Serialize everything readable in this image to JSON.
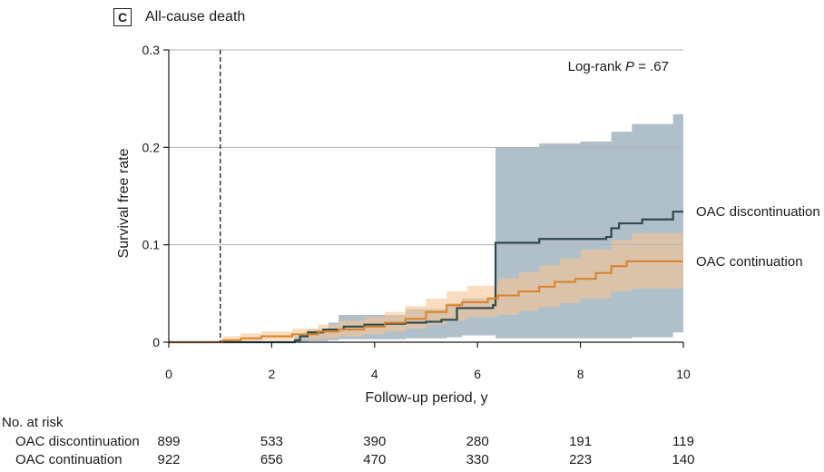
{
  "panel": {
    "label": "C",
    "title": "All-cause death"
  },
  "chart_data": {
    "type": "line",
    "title": "All-cause death",
    "xlabel": "Follow-up period, y",
    "ylabel": "Survival free rate",
    "xlim": [
      0,
      10
    ],
    "ylim": [
      0,
      0.3
    ],
    "xticks": [
      0,
      2,
      4,
      6,
      8,
      10
    ],
    "yticks": [
      0,
      0.1,
      0.2,
      0.3
    ],
    "ytick_labels": [
      "0",
      "0.1",
      "0.2",
      "0.3"
    ],
    "grid": "horizontal",
    "reference_line_x": 1,
    "annotation": {
      "prefix": "Log-rank ",
      "italic": "P",
      "suffix": " = .67"
    },
    "series": [
      {
        "name": "OAC discontinuation",
        "color": "#2e4a52",
        "band_color": "#a7b9c4",
        "steps": [
          [
            0,
            0
          ],
          [
            1,
            0
          ],
          [
            2.45,
            0.002
          ],
          [
            2.55,
            0.006
          ],
          [
            2.7,
            0.01
          ],
          [
            3.0,
            0.013
          ],
          [
            3.4,
            0.016
          ],
          [
            3.8,
            0.018
          ],
          [
            4.2,
            0.019
          ],
          [
            4.6,
            0.02
          ],
          [
            5.0,
            0.021
          ],
          [
            5.3,
            0.023
          ],
          [
            5.6,
            0.035
          ],
          [
            6.3,
            0.038
          ],
          [
            6.35,
            0.102
          ],
          [
            7.2,
            0.106
          ],
          [
            8.5,
            0.108
          ],
          [
            8.6,
            0.117
          ],
          [
            8.75,
            0.122
          ],
          [
            9.2,
            0.126
          ],
          [
            9.8,
            0.134
          ],
          [
            10.0,
            0.134
          ]
        ],
        "ci": [
          [
            0,
            0,
            0
          ],
          [
            1,
            0,
            0
          ],
          [
            2.45,
            0,
            0.006
          ],
          [
            2.7,
            0.001,
            0.013
          ],
          [
            3.1,
            0.002,
            0.02
          ],
          [
            3.3,
            0.003,
            0.028
          ],
          [
            4.6,
            0.004,
            0.034
          ],
          [
            5.4,
            0.005,
            0.04
          ],
          [
            5.7,
            0.007,
            0.045
          ],
          [
            6.35,
            0.004,
            0.2
          ],
          [
            7.2,
            0.004,
            0.204
          ],
          [
            8.0,
            0.004,
            0.206
          ],
          [
            8.6,
            0.004,
            0.216
          ],
          [
            9.0,
            0.005,
            0.224
          ],
          [
            9.8,
            0.01,
            0.234
          ],
          [
            10.0,
            0.01,
            0.234
          ]
        ]
      },
      {
        "name": "OAC continuation",
        "color": "#d9822b",
        "band_color": "#f7c592",
        "steps": [
          [
            0,
            0
          ],
          [
            1,
            0
          ],
          [
            1.05,
            0.002
          ],
          [
            1.4,
            0.004
          ],
          [
            1.8,
            0.006
          ],
          [
            2.4,
            0.008
          ],
          [
            2.9,
            0.011
          ],
          [
            3.3,
            0.013
          ],
          [
            3.8,
            0.016
          ],
          [
            4.2,
            0.02
          ],
          [
            4.6,
            0.024
          ],
          [
            5.0,
            0.031
          ],
          [
            5.4,
            0.038
          ],
          [
            5.7,
            0.041
          ],
          [
            6.2,
            0.045
          ],
          [
            6.4,
            0.048
          ],
          [
            6.8,
            0.052
          ],
          [
            7.2,
            0.057
          ],
          [
            7.5,
            0.062
          ],
          [
            7.9,
            0.065
          ],
          [
            8.3,
            0.071
          ],
          [
            8.6,
            0.078
          ],
          [
            8.9,
            0.083
          ],
          [
            10.0,
            0.083
          ]
        ],
        "ci": [
          [
            0,
            0,
            0
          ],
          [
            1,
            0,
            0.002
          ],
          [
            1.05,
            0,
            0.006
          ],
          [
            1.4,
            0.001,
            0.009
          ],
          [
            1.8,
            0.002,
            0.011
          ],
          [
            2.4,
            0.003,
            0.014
          ],
          [
            2.9,
            0.004,
            0.018
          ],
          [
            3.3,
            0.006,
            0.022
          ],
          [
            3.8,
            0.008,
            0.026
          ],
          [
            4.2,
            0.011,
            0.031
          ],
          [
            4.6,
            0.014,
            0.037
          ],
          [
            5.0,
            0.018,
            0.045
          ],
          [
            5.4,
            0.022,
            0.052
          ],
          [
            5.8,
            0.026,
            0.058
          ],
          [
            6.4,
            0.028,
            0.066
          ],
          [
            6.8,
            0.032,
            0.072
          ],
          [
            7.2,
            0.036,
            0.079
          ],
          [
            7.6,
            0.04,
            0.086
          ],
          [
            8.0,
            0.045,
            0.095
          ],
          [
            8.6,
            0.052,
            0.105
          ],
          [
            9.0,
            0.055,
            0.112
          ],
          [
            10.0,
            0.055,
            0.112
          ]
        ]
      }
    ]
  },
  "risk_table": {
    "heading": "No. at risk",
    "times": [
      0,
      2,
      4,
      6,
      8,
      10
    ],
    "rows": [
      {
        "label": "OAC discontinuation",
        "values": [
          "899",
          "533",
          "390",
          "280",
          "191",
          "119"
        ]
      },
      {
        "label": "OAC continuation",
        "values": [
          "922",
          "656",
          "470",
          "330",
          "223",
          "140"
        ]
      }
    ]
  }
}
